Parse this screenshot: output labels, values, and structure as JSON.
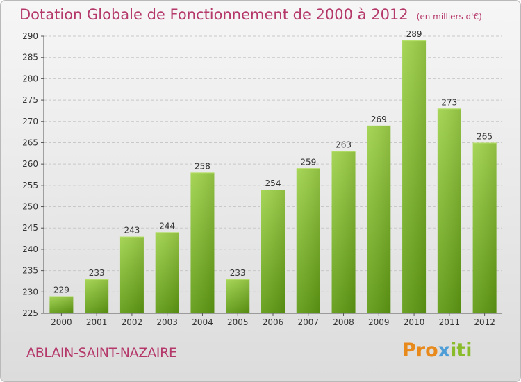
{
  "title": "Dotation Globale de Fonctionnement de 2000 à 2012",
  "unit_note": "(en milliers d'€)",
  "city": "ABLAIN-SAINT-NAZAIRE",
  "logo": {
    "part1": "Pro",
    "part2": "x",
    "part3": "iti"
  },
  "colors": {
    "accent": "#b5386a",
    "bar_top": "#9fd24a",
    "bar_bottom": "#5e9a12"
  },
  "chart_data": {
    "type": "bar",
    "categories": [
      "2000",
      "2001",
      "2002",
      "2003",
      "2004",
      "2005",
      "2006",
      "2007",
      "2008",
      "2009",
      "2010",
      "2011",
      "2012"
    ],
    "values": [
      229,
      233,
      243,
      244,
      258,
      233,
      254,
      259,
      263,
      269,
      289,
      273,
      265
    ],
    "ylim": [
      225,
      290
    ],
    "yticks": [
      225,
      230,
      235,
      240,
      245,
      250,
      255,
      260,
      265,
      270,
      275,
      280,
      285,
      290
    ],
    "grid": true
  }
}
